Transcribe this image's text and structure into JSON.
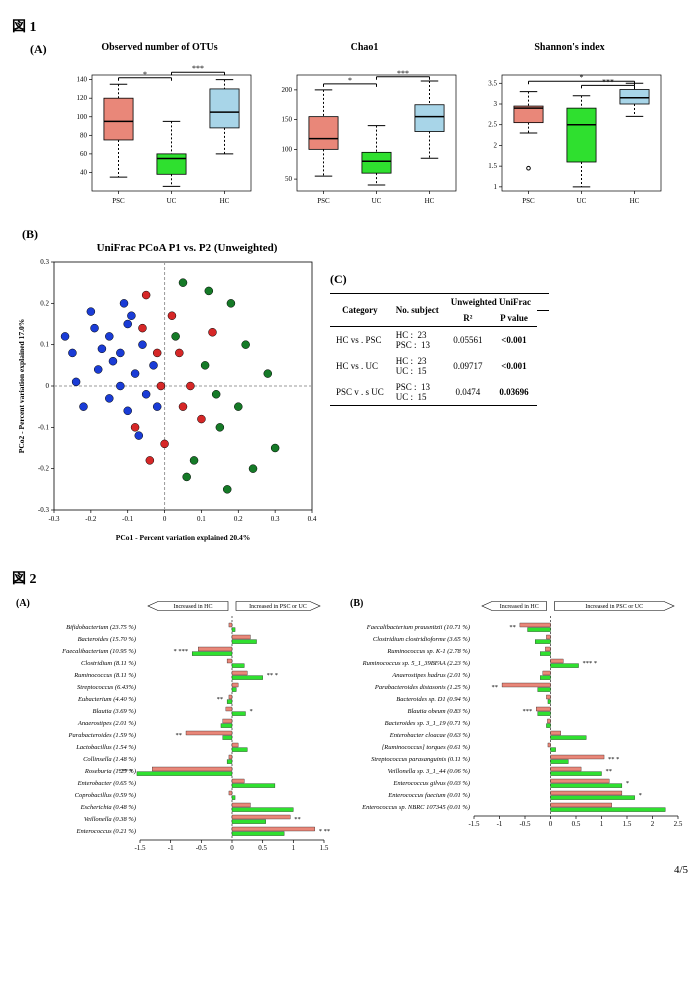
{
  "page_number": "4/5",
  "fig1": {
    "label": "図 1",
    "panelA": {
      "letter": "(A)",
      "boxcharts": [
        {
          "title": "Observed number of OTUs",
          "ylim": [
            20,
            145
          ],
          "yticks": [
            40,
            60,
            80,
            100,
            120,
            140
          ],
          "categories": [
            "PSC",
            "UC",
            "HC"
          ],
          "boxes": [
            {
              "color": "#e98779",
              "q1": 75,
              "median": 95,
              "q3": 120,
              "wlo": 35,
              "whi": 135
            },
            {
              "color": "#2fe02f",
              "q1": 38,
              "median": 55,
              "q3": 60,
              "wlo": 25,
              "whi": 95
            },
            {
              "color": "#a8d5e8",
              "q1": 88,
              "median": 105,
              "q3": 130,
              "wlo": 60,
              "whi": 140
            }
          ],
          "sig": [
            {
              "from": 0,
              "to": 1,
              "label": "*",
              "y": 142
            },
            {
              "from": 1,
              "to": 2,
              "label": "***",
              "y": 148
            }
          ]
        },
        {
          "title": "Chao1",
          "ylim": [
            30,
            225
          ],
          "yticks": [
            50,
            100,
            150,
            200
          ],
          "categories": [
            "PSC",
            "UC",
            "HC"
          ],
          "boxes": [
            {
              "color": "#e98779",
              "q1": 100,
              "median": 118,
              "q3": 155,
              "wlo": 55,
              "whi": 200
            },
            {
              "color": "#2fe02f",
              "q1": 60,
              "median": 80,
              "q3": 95,
              "wlo": 40,
              "whi": 140
            },
            {
              "color": "#a8d5e8",
              "q1": 130,
              "median": 155,
              "q3": 175,
              "wlo": 85,
              "whi": 215
            }
          ],
          "sig": [
            {
              "from": 0,
              "to": 1,
              "label": "*",
              "y": 210
            },
            {
              "from": 1,
              "to": 2,
              "label": "***",
              "y": 222
            }
          ]
        },
        {
          "title": "Shannon's index",
          "ylim": [
            0.9,
            3.7
          ],
          "yticks": [
            1.0,
            1.5,
            2.0,
            2.5,
            3.0,
            3.5
          ],
          "categories": [
            "PSC",
            "UC",
            "HC"
          ],
          "boxes": [
            {
              "color": "#e98779",
              "q1": 2.55,
              "median": 2.9,
              "q3": 2.95,
              "wlo": 2.3,
              "whi": 3.3,
              "outliers": [
                1.45
              ]
            },
            {
              "color": "#2fe02f",
              "q1": 1.6,
              "median": 2.5,
              "q3": 2.9,
              "wlo": 1.0,
              "whi": 3.2
            },
            {
              "color": "#a8d5e8",
              "q1": 3.0,
              "median": 3.15,
              "q3": 3.35,
              "wlo": 2.7,
              "whi": 3.5
            }
          ],
          "sig": [
            {
              "from": 0,
              "to": 2,
              "label": "*",
              "y": 3.55
            },
            {
              "from": 1,
              "to": 2,
              "label": "***",
              "y": 3.45
            }
          ]
        }
      ]
    },
    "panelB": {
      "letter": "(B)",
      "title": "UniFrac PCoA P1 vs. P2 (Unweighted)",
      "xlabel": "PCo1 - Percent variation explained 20.4%",
      "ylabel": "PCo2 - Percent variation explained 17.0%",
      "xlim": [
        -0.3,
        0.4
      ],
      "ylim": [
        -0.3,
        0.3
      ],
      "xticks": [
        -0.3,
        -0.2,
        -0.1,
        0,
        0.1,
        0.2,
        0.3,
        0.4
      ],
      "yticks": [
        -0.3,
        -0.2,
        -0.1,
        0,
        0.1,
        0.2,
        0.3
      ],
      "groups": {
        "blue": {
          "color": "#1a3cd6",
          "points": [
            [
              -0.27,
              0.12
            ],
            [
              -0.2,
              0.18
            ],
            [
              -0.18,
              0.04
            ],
            [
              -0.24,
              0.01
            ],
            [
              -0.15,
              0.12
            ],
            [
              -0.1,
              0.15
            ],
            [
              -0.12,
              0.08
            ],
            [
              -0.08,
              0.03
            ],
            [
              -0.15,
              -0.03
            ],
            [
              -0.22,
              -0.05
            ],
            [
              -0.1,
              -0.06
            ],
            [
              -0.05,
              -0.02
            ],
            [
              -0.17,
              0.09
            ],
            [
              -0.06,
              0.1
            ],
            [
              -0.03,
              0.05
            ],
            [
              -0.12,
              0.0
            ],
            [
              -0.19,
              0.14
            ],
            [
              -0.07,
              -0.12
            ],
            [
              -0.14,
              0.06
            ],
            [
              -0.02,
              -0.05
            ],
            [
              -0.09,
              0.17
            ],
            [
              -0.25,
              0.08
            ],
            [
              -0.11,
              0.2
            ]
          ]
        },
        "green": {
          "color": "#157a27",
          "points": [
            [
              0.05,
              0.25
            ],
            [
              0.12,
              0.23
            ],
            [
              0.18,
              0.2
            ],
            [
              0.22,
              0.1
            ],
            [
              0.28,
              0.03
            ],
            [
              0.2,
              -0.05
            ],
            [
              0.15,
              -0.1
            ],
            [
              0.08,
              -0.18
            ],
            [
              0.24,
              -0.2
            ],
            [
              0.3,
              -0.15
            ],
            [
              0.17,
              -0.25
            ],
            [
              0.06,
              -0.22
            ],
            [
              0.11,
              0.05
            ],
            [
              0.14,
              -0.02
            ],
            [
              0.03,
              0.12
            ]
          ]
        },
        "red": {
          "color": "#d62727",
          "points": [
            [
              -0.05,
              0.22
            ],
            [
              0.02,
              0.17
            ],
            [
              0.07,
              0.0
            ],
            [
              -0.02,
              0.08
            ],
            [
              0.05,
              -0.05
            ],
            [
              -0.08,
              -0.1
            ],
            [
              0.0,
              -0.14
            ],
            [
              0.1,
              -0.08
            ],
            [
              -0.04,
              -0.18
            ],
            [
              0.13,
              0.13
            ],
            [
              -0.01,
              0.0
            ],
            [
              0.04,
              0.08
            ],
            [
              -0.06,
              0.14
            ]
          ]
        }
      }
    },
    "panelC": {
      "letter": "(C)",
      "headers": [
        "Category",
        "No. subject",
        "R²",
        "P value"
      ],
      "header_top": "Unweighted UniFrac",
      "rows": [
        {
          "cat": "HC    vs . PSC",
          "subj": "HC :  23\nPSC :  13",
          "r2": "0.05561",
          "p": "<0.001"
        },
        {
          "cat": "HC   vs . UC",
          "subj": "HC :  23\nUC :  15",
          "r2": "0.09717",
          "p": "<0.001"
        },
        {
          "cat": "PSC  v . s UC",
          "subj": "PSC :  13\nUC :  15",
          "r2": "0.0474",
          "p": "0.03696"
        }
      ]
    }
  },
  "fig2": {
    "label": "図 2",
    "arrow_left": "Increased in HC",
    "arrow_right_A": "Increased in PSC or UC",
    "arrow_right_B": "Increased in PSC or UC",
    "xticks": [
      -1.5,
      -1.0,
      -0.5,
      0,
      0.5,
      1.0,
      1.5
    ],
    "xticksB": [
      -1.5,
      -1.0,
      -0.5,
      0,
      0.5,
      1.0,
      1.5,
      2.0,
      2.5
    ],
    "colors": {
      "psc": "#e98779",
      "uc": "#2fe02f"
    },
    "panelA": {
      "letter": "(A)",
      "rows": [
        {
          "label": "Bifidobacterium (23.75 %)",
          "psc": -0.05,
          "uc": 0.05,
          "sig": ""
        },
        {
          "label": "Bacteroides (15.70 %)",
          "psc": 0.3,
          "uc": 0.4,
          "sig": ""
        },
        {
          "label": "Faecalibacterium (10.95 %)",
          "psc": -0.55,
          "uc": -0.65,
          "sig": "* ***",
          "sigside": "left"
        },
        {
          "label": "Clostridium (8.11 %)",
          "psc": -0.08,
          "uc": 0.2,
          "sig": ""
        },
        {
          "label": "Ruminococcus (8.11 %)",
          "psc": 0.25,
          "uc": 0.5,
          "sig": "** *",
          "sigside": "right"
        },
        {
          "label": "Streptococcus (6.43%)",
          "psc": 0.1,
          "uc": 0.07,
          "sig": ""
        },
        {
          "label": "Eubacterium (4.40 %)",
          "psc": -0.05,
          "uc": -0.08,
          "sig": "**",
          "sigside": "left"
        },
        {
          "label": "Blautia (3.69 %)",
          "psc": -0.1,
          "uc": 0.22,
          "sig": "*",
          "sigside": "right"
        },
        {
          "label": "Anaerostipes (2.01 %)",
          "psc": -0.15,
          "uc": -0.18,
          "sig": ""
        },
        {
          "label": "Parabacteroides (1.59 %)",
          "psc": -0.75,
          "uc": -0.15,
          "sig": "**",
          "sigside": "left"
        },
        {
          "label": "Lactobacillus (1.54 %)",
          "psc": 0.1,
          "uc": 0.25,
          "sig": ""
        },
        {
          "label": "Collinsella (1.48 %)",
          "psc": -0.05,
          "uc": -0.08,
          "sig": ""
        },
        {
          "label": "Roseburia (1.25 %)",
          "psc": -1.3,
          "uc": -1.55,
          "sig": "*** *",
          "sigside": "left"
        },
        {
          "label": "Enterobacter (0.65 %)",
          "psc": 0.2,
          "uc": 0.7,
          "sig": ""
        },
        {
          "label": "Coprobacillus (0.59 %)",
          "psc": -0.05,
          "uc": 0.05,
          "sig": ""
        },
        {
          "label": "Escherichia (0.48 %)",
          "psc": 0.3,
          "uc": 1.0,
          "sig": ""
        },
        {
          "label": "Veillonella (0.38 %)",
          "psc": 0.95,
          "uc": 0.55,
          "sig": "**",
          "sigside": "right"
        },
        {
          "label": "Enterococcus (0.21 %)",
          "psc": 1.35,
          "uc": 0.85,
          "sig": "* **",
          "sigside": "right"
        }
      ]
    },
    "panelB": {
      "letter": "(B)",
      "rows": [
        {
          "label": "Faecalibacterium prausnitzii (10.71 %)",
          "psc": -0.6,
          "uc": -0.45,
          "sig": "**",
          "sigside": "left"
        },
        {
          "label": "Clostridium clostridioforme (3.65 %)",
          "psc": -0.08,
          "uc": -0.3,
          "sig": ""
        },
        {
          "label": "Ruminococcus sp. K-1 (2.78 %)",
          "psc": -0.1,
          "uc": -0.2,
          "sig": ""
        },
        {
          "label": "Ruminococcus sp. 5_1_39BFAA (2.23 %)",
          "psc": 0.25,
          "uc": 0.55,
          "sig": "*** *",
          "sigside": "right"
        },
        {
          "label": "Anaerostipes hadrus (2.01 %)",
          "psc": -0.15,
          "uc": -0.2,
          "sig": ""
        },
        {
          "label": "Parabacteroides distasonis (1.25 %)",
          "psc": -0.95,
          "uc": -0.25,
          "sig": "**",
          "sigside": "left"
        },
        {
          "label": "Bacteroides sp. D1 (0.94 %)",
          "psc": -0.08,
          "uc": -0.05,
          "sig": ""
        },
        {
          "label": "Blautia obeum (0.83 %)",
          "psc": -0.28,
          "uc": -0.25,
          "sig": "***",
          "sigside": "left"
        },
        {
          "label": "Bacteroides sp. 3_1_19 (0.71 %)",
          "psc": -0.06,
          "uc": -0.08,
          "sig": ""
        },
        {
          "label": "Enterobacter cloacae (0.63 %)",
          "psc": 0.2,
          "uc": 0.7,
          "sig": ""
        },
        {
          "label": "[Ruminococcus] torques (0.61 %)",
          "psc": -0.05,
          "uc": 0.1,
          "sig": ""
        },
        {
          "label": "Streptococcus parasanguinis (0.11 %)",
          "psc": 1.05,
          "uc": 0.35,
          "sig": "** *",
          "sigside": "right"
        },
        {
          "label": "Veillonella sp. 3_1_44 (0.06 %)",
          "psc": 0.6,
          "uc": 1.0,
          "sig": "**",
          "sigside": "right"
        },
        {
          "label": "Enterococcus gilvus (0.03 %)",
          "psc": 1.15,
          "uc": 1.4,
          "sig": "*",
          "sigside": "right"
        },
        {
          "label": "Enterococcus faecium (0.01 %)",
          "psc": 1.4,
          "uc": 1.65,
          "sig": "*",
          "sigside": "right"
        },
        {
          "label": "Enterococcus sp. NBRC 107345 (0.01 %)",
          "psc": 1.2,
          "uc": 2.25,
          "sig": "",
          "sigside": "right"
        }
      ]
    }
  }
}
